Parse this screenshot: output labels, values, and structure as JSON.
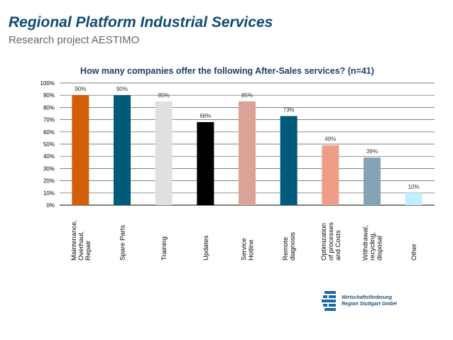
{
  "slide": {
    "title": "Regional Platform Industrial Services",
    "subtitle": "Research project AESTIMO"
  },
  "logo": {
    "icon": "wirtschaftsfoerderung-logo-icon",
    "line1": "Wirtschaftsförderung",
    "line2": "Region Stuttgart GmbH"
  },
  "colors": {
    "title": "#0f4c73",
    "subtitle": "#666666"
  },
  "chart_data": {
    "type": "bar",
    "title": "How many companies offer the following After-Sales services? (n=41)",
    "categories": [
      [
        "Maintenance,",
        "Overhaul,",
        "Repair"
      ],
      [
        "Spare Parts"
      ],
      [
        "Training"
      ],
      [
        "Updates"
      ],
      [
        "Service",
        "Hotline"
      ],
      [
        "Remote",
        "diagnosis"
      ],
      [
        "Optimization",
        "of processes",
        "and Costs"
      ],
      [
        "Withdrawal,",
        "recycling,",
        "disposal"
      ],
      [
        "Other"
      ]
    ],
    "values": [
      90,
      90,
      85,
      68,
      85,
      73,
      49,
      39,
      10
    ],
    "value_labels": [
      "90%",
      "90%",
      "85%",
      "68%",
      "85%",
      "73%",
      "49%",
      "39%",
      "10%"
    ],
    "bar_colors": [
      "#d35f0b",
      "#005a7a",
      "#e0e0e0",
      "#000000",
      "#dba398",
      "#005a7a",
      "#ee9e86",
      "#86a3b4",
      "#bfeefe"
    ],
    "ylim": [
      0,
      100
    ],
    "yticks": [
      "0%",
      "10%",
      "20%",
      "30%",
      "40%",
      "50%",
      "60%",
      "70%",
      "80%",
      "90%",
      "100%"
    ],
    "grid": true,
    "legend": "none"
  }
}
